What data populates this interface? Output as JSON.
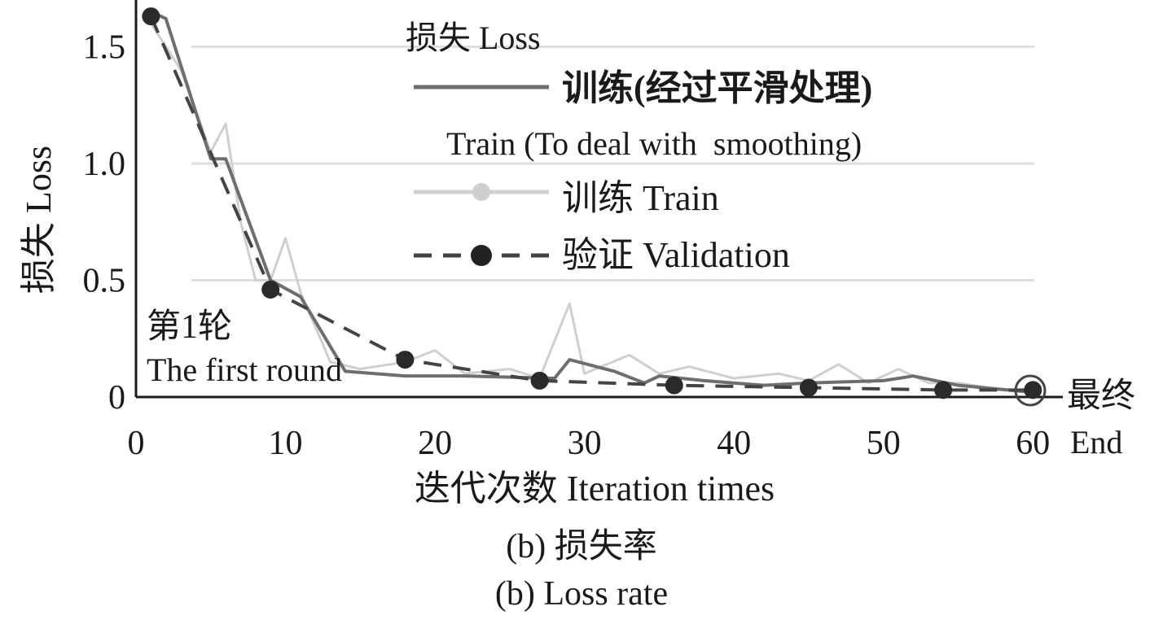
{
  "chart_data": {
    "type": "line",
    "ylabel": "损失 Loss",
    "xlabel": "迭代次数 Iteration times",
    "xlim": [
      0,
      62
    ],
    "ylim": [
      0,
      1.7
    ],
    "x_ticks": [
      "0",
      "10",
      "20",
      "30",
      "40",
      "50",
      "60"
    ],
    "y_ticks": [
      "0",
      "0.5",
      "1.0",
      "1.5"
    ],
    "grid": "horizontal",
    "legend_placement": "top-right",
    "legend_title": "损失 Loss",
    "series": [
      {
        "name": "训练(经过平滑处理)",
        "name_en": "Train (To deal with  smoothing)",
        "style": "solid",
        "color": "#6e6e6e",
        "x": [
          1,
          2,
          5,
          6,
          9,
          11,
          14,
          18,
          22,
          28,
          29,
          32,
          34,
          35,
          38,
          42,
          45,
          50,
          52,
          55,
          60
        ],
        "y": [
          1.65,
          1.62,
          1.02,
          1.02,
          0.5,
          0.43,
          0.11,
          0.09,
          0.09,
          0.08,
          0.16,
          0.11,
          0.06,
          0.09,
          0.07,
          0.05,
          0.06,
          0.07,
          0.09,
          0.05,
          0.02
        ]
      },
      {
        "name": "训练 Train",
        "style": "solid-light",
        "color": "#cfcfcf",
        "x": [
          1,
          3,
          5,
          6,
          7,
          8,
          9,
          10,
          11,
          13,
          15,
          18,
          20,
          22,
          25,
          27,
          29,
          30,
          33,
          35,
          37,
          40,
          43,
          45,
          47,
          49,
          51,
          53,
          55,
          58,
          60
        ],
        "y": [
          1.6,
          1.4,
          1.05,
          1.17,
          0.75,
          0.5,
          0.5,
          0.68,
          0.45,
          0.15,
          0.12,
          0.15,
          0.2,
          0.1,
          0.12,
          0.08,
          0.4,
          0.1,
          0.18,
          0.1,
          0.13,
          0.08,
          0.1,
          0.07,
          0.14,
          0.06,
          0.12,
          0.06,
          0.06,
          0.03,
          0.02
        ]
      },
      {
        "name": "验证 Validation",
        "style": "dashed",
        "color": "#444444",
        "x": [
          1,
          9,
          18,
          27,
          36,
          45,
          54,
          60
        ],
        "y": [
          1.63,
          0.46,
          0.16,
          0.07,
          0.05,
          0.04,
          0.03,
          0.03
        ]
      }
    ],
    "annotations": [
      {
        "text": "第1轮",
        "text_en": "The first round",
        "x": 1,
        "y": 1.63
      },
      {
        "text": "最终",
        "text_en": "End",
        "x": 60,
        "y": 0.03
      }
    ]
  },
  "caption": {
    "zh": "(b) 损失率",
    "en": "(b) Loss rate"
  }
}
